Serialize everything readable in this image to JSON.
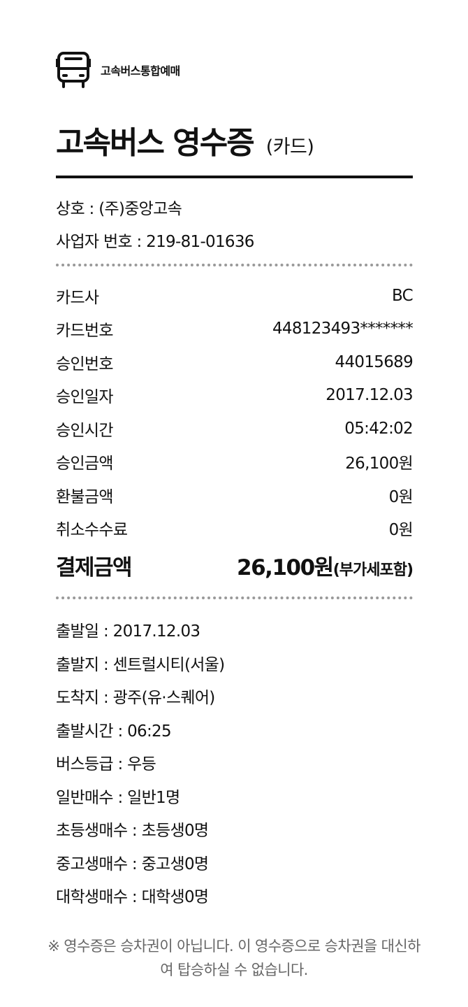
{
  "brand": {
    "name": "고속버스통합예매",
    "icon": "bus-icon"
  },
  "receipt": {
    "title": "고속버스 영수증",
    "subtitle": "(카드)"
  },
  "merchant": {
    "company": "상호 : (주)중앙고속",
    "business_no": "사업자 번호 : 219-81-01636"
  },
  "payment": {
    "rows": [
      {
        "label": "카드사",
        "value": "BC"
      },
      {
        "label": "카드번호",
        "value": "448123493*******"
      },
      {
        "label": "승인번호",
        "value": "44015689"
      },
      {
        "label": "승인일자",
        "value": "2017.12.03"
      },
      {
        "label": "승인시간",
        "value": "05:42:02"
      },
      {
        "label": "승인금액",
        "value": "26,100원"
      },
      {
        "label": "환불금액",
        "value": "0원"
      },
      {
        "label": "취소수수료",
        "value": "0원"
      }
    ],
    "total_label": "결제금액",
    "total_amount": "26,100원",
    "total_note": "(부가세포함)"
  },
  "trip": {
    "lines": [
      "출발일 : 2017.12.03",
      "출발지 : 센트럴시티(서울)",
      "도착지 : 광주(유·스퀘어)",
      "출발시간 : 06:25",
      "버스등급 : 우등",
      "일반매수 : 일반1명",
      "초등생매수 : 초등생0명",
      "중고생매수 : 중고생0명",
      "대학생매수 : 대학생0명"
    ]
  },
  "notice": {
    "line1": "※ 영수증은 승차권이 아닙니다. 이 영수증으로 승차권을 대신하",
    "line2": "여 탑승하실 수 없습니다."
  }
}
